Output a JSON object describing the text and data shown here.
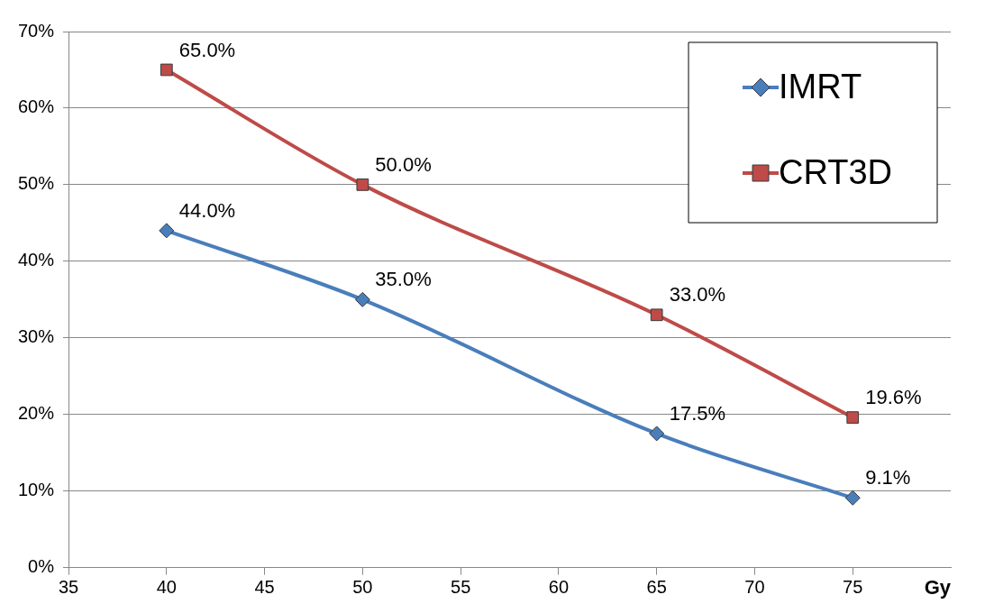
{
  "chart_data": {
    "type": "line",
    "xlabel": "Gy",
    "x": [
      40,
      50,
      65,
      75
    ],
    "series": [
      {
        "name": "IMRT",
        "color": "#4a7ebb",
        "marker": "diamond",
        "values": [
          44,
          35,
          17.5,
          9.1
        ],
        "value_labels": [
          "44.0%",
          "35.0%",
          "17.5%",
          "9.1%"
        ]
      },
      {
        "name": "CRT3D",
        "color": "#be4b48",
        "marker": "square",
        "values": [
          65,
          50,
          33,
          19.6
        ],
        "value_labels": [
          "65.0%",
          "50.0%",
          "33.0%",
          "19.6%"
        ]
      }
    ],
    "xlim": [
      35,
      80
    ],
    "xticks": [
      35,
      40,
      45,
      50,
      55,
      60,
      65,
      70,
      75
    ],
    "ylim": [
      0,
      70
    ],
    "yticks": [
      {
        "value": 0,
        "label": "0%"
      },
      {
        "value": 10,
        "label": "10%"
      },
      {
        "value": 20,
        "label": "20%"
      },
      {
        "value": 30,
        "label": "30%"
      },
      {
        "value": 40,
        "label": "40%"
      },
      {
        "value": 50,
        "label": "50%"
      },
      {
        "value": 60,
        "label": "60%"
      },
      {
        "value": 70,
        "label": "70%"
      }
    ],
    "grid": "y",
    "legend": "top right",
    "line_style": "solid"
  }
}
